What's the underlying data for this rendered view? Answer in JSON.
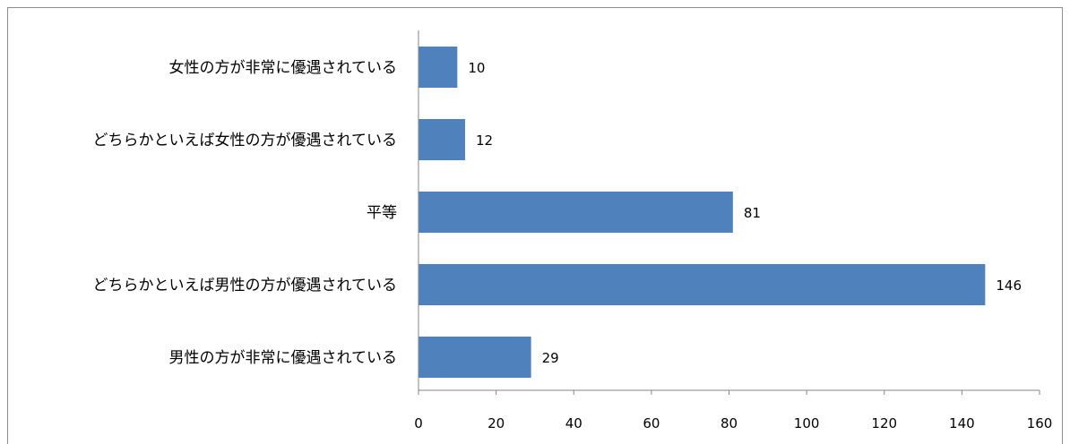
{
  "chart_data": {
    "type": "bar",
    "orientation": "horizontal",
    "categories": [
      "女性の方が非常に優遇されている",
      "どちらかといえば女性の方が優遇されている",
      "平等",
      "どちらかといえば男性の方が優遇されている",
      "男性の方が非常に優遇されている"
    ],
    "values": [
      10,
      12,
      81,
      146,
      29
    ],
    "value_labels": [
      "10",
      "12",
      "81",
      "146",
      "29"
    ],
    "xlim": [
      0,
      160
    ],
    "x_ticks": [
      0,
      20,
      40,
      60,
      80,
      100,
      120,
      140,
      160
    ],
    "x_tick_labels": [
      "0",
      "20",
      "40",
      "60",
      "80",
      "100",
      "120",
      "140",
      "160"
    ],
    "bar_color": "#4f81bd",
    "grid": false,
    "legend": "none"
  }
}
